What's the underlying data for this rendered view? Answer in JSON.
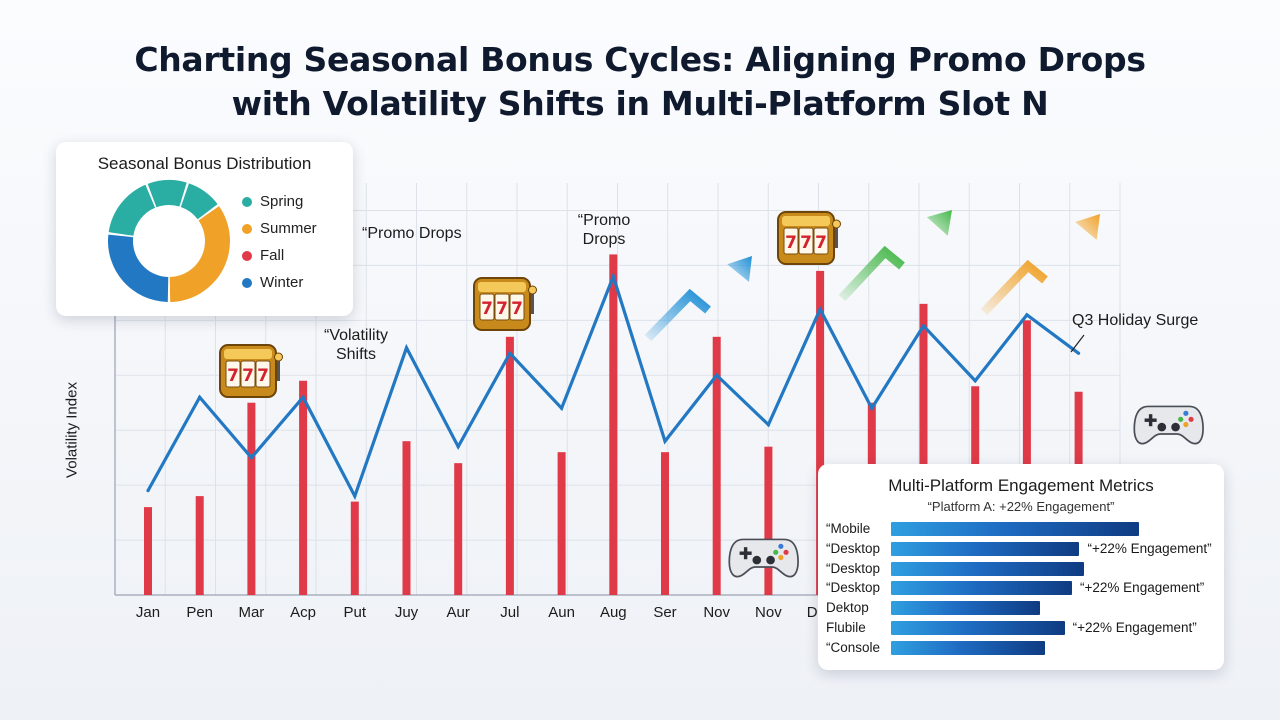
{
  "title_line1": "Charting Seasonal Bonus Cycles: Aligning Promo Drops",
  "title_line2": "with Volatility Shifts in Multi-Platform Slot N",
  "colors": {
    "bar": "#e03a48",
    "line": "#2278c2",
    "arrow_blue": "#1f8fd6",
    "arrow_green": "#46b84a",
    "arrow_orange": "#f0a127",
    "spring": "#2aaea4",
    "summer": "#f0a127",
    "fall": "#e03a48",
    "winter": "#2278c2"
  },
  "chart_data": [
    {
      "type": "bar",
      "title": "",
      "xlabel": "",
      "ylabel": "Volatility Index",
      "categories": [
        "Jan",
        "Pen",
        "Mar",
        "Acp",
        "Put",
        "Juy",
        "Aur",
        "Jul",
        "Aun",
        "Aug",
        "Ser",
        "Nov",
        "Nov",
        "Dec",
        "",
        "",
        "",
        "",
        ""
      ],
      "series": [
        {
          "name": "",
          "type": "bar",
          "values": [
            16,
            18,
            35,
            39,
            17,
            28,
            24,
            47,
            26,
            62,
            26,
            47,
            27,
            59,
            35,
            53,
            38,
            50,
            37
          ]
        },
        {
          "name": "",
          "type": "line",
          "values": [
            19,
            36,
            25,
            36,
            18,
            45,
            27,
            44,
            34,
            58,
            28,
            40,
            31,
            52,
            34,
            49,
            39,
            51,
            44
          ]
        }
      ],
      "ylim": [
        0,
        75
      ],
      "grid": true,
      "annotations": [
        {
          "text": "“Volatility Shifts"
        },
        {
          "text": "“Promo Drops"
        },
        {
          "text": "“Promo Drops"
        },
        {
          "text": "Q3 Holiday Surge"
        }
      ]
    },
    {
      "type": "pie",
      "title": "Seasonal Bonus Distribution",
      "categories": [
        "Spring",
        "Summer",
        "Fall",
        "Winter"
      ],
      "slices": [
        {
          "label": "Winter",
          "value": 27
        },
        {
          "label": "Spring",
          "value": 17
        },
        {
          "label": "Spring",
          "value": 11
        },
        {
          "label": "Spring",
          "value": 10
        },
        {
          "label": "Summer",
          "value": 35
        }
      ]
    },
    {
      "type": "bar",
      "title": "Multi-Platform Engagement Metrics",
      "subtitle": "“Platform A: +22% Engagement”",
      "categories": [
        "“Mobile",
        "“Desktop",
        "“Desktop",
        "“Desktop",
        "Dektop",
        "Flubile",
        "“Console"
      ],
      "values": [
        100,
        76,
        78,
        73,
        60,
        70,
        62
      ],
      "annotations": [
        "",
        "“+22% Engagement”",
        "",
        "“+22% Engagement”",
        "",
        "“+22% Engagement”",
        ""
      ]
    }
  ],
  "icons": [
    {
      "name": "slot-machine-icon"
    },
    {
      "name": "slot-machine-icon"
    },
    {
      "name": "slot-machine-icon"
    },
    {
      "name": "gamepad-icon"
    },
    {
      "name": "gamepad-icon"
    },
    {
      "name": "trend-arrow-icon"
    }
  ]
}
